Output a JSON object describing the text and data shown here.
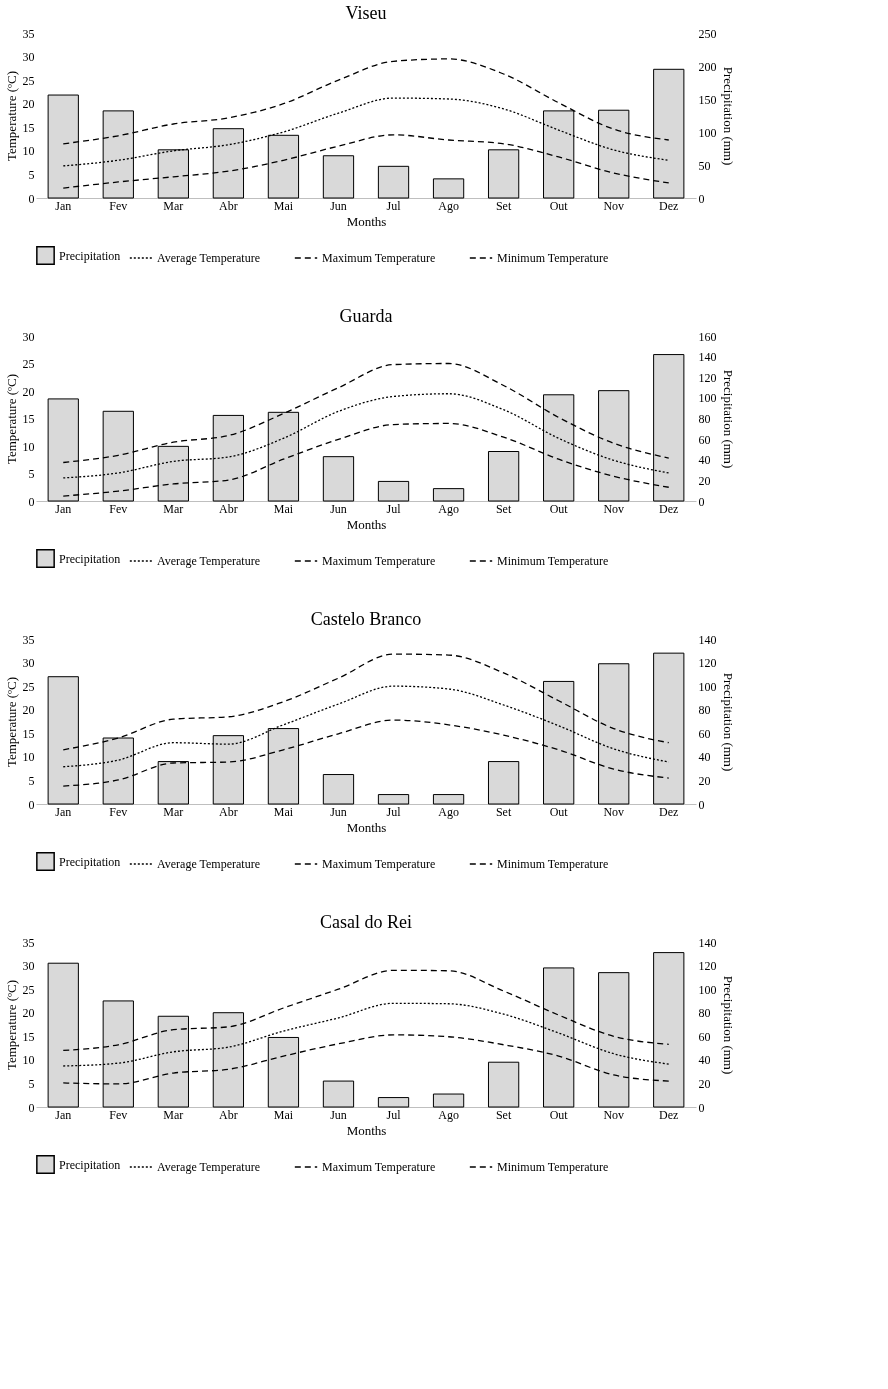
{
  "chart_data": [
    {
      "type": "bar",
      "title": "Viseu",
      "xlabel": "Months",
      "ylabel": "Temperature (ºC)",
      "y2label": "Precipitation (mm)",
      "categories": [
        "Jan",
        "Fev",
        "Mar",
        "Abr",
        "Mai",
        "Jun",
        "Jul",
        "Ago",
        "Set",
        "Out",
        "Nov",
        "Dez"
      ],
      "ylim": [
        0,
        35
      ],
      "yticks": [
        0,
        5,
        10,
        15,
        20,
        25,
        30,
        35
      ],
      "y2lim": [
        0,
        250
      ],
      "y2ticks": [
        0,
        50,
        100,
        150,
        200,
        250
      ],
      "legend": "bottom",
      "grid": false,
      "series": [
        {
          "name": "Precipitation",
          "axis": "y2",
          "color": "#d9d9d9",
          "values": [
            156,
            132,
            73,
            105,
            95,
            64,
            48,
            29,
            73,
            132,
            133,
            195
          ]
        },
        {
          "name": "Average Temperature",
          "type": "line",
          "color": "#000000",
          "line_style": "dotted",
          "values": [
            6.8,
            8,
            10,
            11.3,
            14,
            18,
            21.2,
            21,
            18.9,
            14.4,
            10.2,
            8
          ]
        },
        {
          "name": "Maximum Temperature",
          "type": "line",
          "color": "#000000",
          "line_style": "dashed",
          "values": [
            11.5,
            13.2,
            15.7,
            17,
            20,
            25,
            29,
            29.5,
            26.3,
            20.2,
            14.6,
            12.3
          ]
        },
        {
          "name": "Minimum Temperature",
          "type": "line",
          "color": "#000000",
          "line_style": "dashed",
          "values": [
            2.1,
            3.4,
            4.5,
            5.7,
            8,
            11,
            13.4,
            12.3,
            11.5,
            8.7,
            5.3,
            3.2
          ]
        }
      ]
    },
    {
      "type": "bar",
      "title": "Guarda",
      "xlabel": "Months",
      "ylabel": "Temperature (ºC)",
      "y2label": "Precipitation (mm)",
      "categories": [
        "Jan",
        "Fev",
        "Mar",
        "Abr",
        "Mai",
        "Jun",
        "Jul",
        "Ago",
        "Set",
        "Out",
        "Nov",
        "Dez"
      ],
      "ylim": [
        0,
        30
      ],
      "yticks": [
        0,
        5,
        10,
        15,
        20,
        25,
        30
      ],
      "y2lim": [
        0,
        160
      ],
      "y2ticks": [
        0,
        20,
        40,
        60,
        80,
        100,
        120,
        140,
        160
      ],
      "legend": "bottom",
      "grid": false,
      "series": [
        {
          "name": "Precipitation",
          "axis": "y2",
          "color": "#d9d9d9",
          "values": [
            99,
            87,
            53,
            83,
            86,
            43,
            19,
            12,
            48,
            103,
            107,
            142
          ]
        },
        {
          "name": "Average Temperature",
          "type": "line",
          "color": "#000000",
          "line_style": "dotted",
          "values": [
            4.2,
            5.1,
            7.2,
            8,
            11.4,
            16.3,
            19,
            19.5,
            16.6,
            11.4,
            7.4,
            5.1
          ]
        },
        {
          "name": "Maximum Temperature",
          "type": "line",
          "color": "#000000",
          "line_style": "dashed",
          "values": [
            7,
            8.3,
            10.7,
            11.9,
            15.9,
            20.6,
            24.8,
            25,
            21,
            15.2,
            10.5,
            7.8
          ]
        },
        {
          "name": "Minimum Temperature",
          "type": "line",
          "color": "#000000",
          "line_style": "dashed",
          "values": [
            0.9,
            1.8,
            3.1,
            3.8,
            7.6,
            11.2,
            13.9,
            14.1,
            11.6,
            7.6,
            4.5,
            2.5
          ]
        }
      ]
    },
    {
      "type": "bar",
      "title": "Castelo Branco",
      "xlabel": "Months",
      "ylabel": "Temperature (ºC)",
      "y2label": "Precipitation (mm)",
      "categories": [
        "Jan",
        "Fev",
        "Mar",
        "Abr",
        "Mai",
        "Jun",
        "Jul",
        "Ago",
        "Set",
        "Out",
        "Nov",
        "Dez"
      ],
      "ylim": [
        0,
        35
      ],
      "yticks": [
        0,
        5,
        10,
        15,
        20,
        25,
        30,
        35
      ],
      "y2lim": [
        0,
        140
      ],
      "y2ticks": [
        0,
        20,
        40,
        60,
        80,
        100,
        120,
        140
      ],
      "legend": "bottom",
      "grid": false,
      "series": [
        {
          "name": "Precipitation",
          "axis": "y2",
          "color": "#d9d9d9",
          "values": [
            108,
            56,
            36,
            58,
            64,
            25,
            8,
            8,
            36,
            104,
            119,
            128
          ]
        },
        {
          "name": "Average Temperature",
          "type": "line",
          "color": "#000000",
          "line_style": "dotted",
          "values": [
            7.9,
            9.3,
            13,
            12.7,
            16.8,
            21.2,
            25,
            24.4,
            21,
            16.6,
            11.7,
            8.9
          ]
        },
        {
          "name": "Maximum Temperature",
          "type": "line",
          "color": "#000000",
          "line_style": "dashed",
          "values": [
            11.5,
            14,
            18,
            18.5,
            21.7,
            26.7,
            31.8,
            31.6,
            27.8,
            21.9,
            16,
            13
          ]
        },
        {
          "name": "Minimum Temperature",
          "type": "line",
          "color": "#000000",
          "line_style": "dashed",
          "values": [
            3.8,
            5.1,
            8.7,
            8.9,
            11.5,
            14.9,
            17.8,
            16.8,
            14.6,
            11.5,
            7.4,
            5.5
          ]
        }
      ]
    },
    {
      "type": "bar",
      "title": "Casal do Rei",
      "xlabel": "Months",
      "ylabel": "Temperature (ºC)",
      "y2label": "Precipitation (mm)",
      "categories": [
        "Jan",
        "Fev",
        "Mar",
        "Abr",
        "Mai",
        "Jun",
        "Jul",
        "Ago",
        "Set",
        "Out",
        "Nov",
        "Dez"
      ],
      "ylim": [
        0,
        35
      ],
      "yticks": [
        0,
        5,
        10,
        15,
        20,
        25,
        30,
        35
      ],
      "y2lim": [
        0,
        140
      ],
      "y2ticks": [
        0,
        20,
        40,
        60,
        80,
        100,
        120,
        140
      ],
      "legend": "bottom",
      "grid": false,
      "series": [
        {
          "name": "Precipitation",
          "axis": "y2",
          "color": "#d9d9d9",
          "values": [
            122,
            90,
            77,
            80,
            59,
            22,
            8,
            11,
            38,
            118,
            114,
            131
          ]
        },
        {
          "name": "Average Temperature",
          "type": "line",
          "color": "#000000",
          "line_style": "dotted",
          "values": [
            8.7,
            9.3,
            11.7,
            12.7,
            16.1,
            18.9,
            22,
            21.9,
            19.7,
            15.7,
            11.3,
            9.1
          ]
        },
        {
          "name": "Maximum Temperature",
          "type": "line",
          "color": "#000000",
          "line_style": "dashed",
          "values": [
            12,
            13.2,
            16.4,
            17,
            21,
            25,
            29,
            28.9,
            24.6,
            19.5,
            15,
            13.3
          ]
        },
        {
          "name": "Minimum Temperature",
          "type": "line",
          "color": "#000000",
          "line_style": "dashed",
          "values": [
            5.1,
            4.9,
            7.2,
            8,
            10.8,
            13.4,
            15.3,
            14.9,
            13.2,
            10.8,
            6.8,
            5.5
          ]
        }
      ]
    }
  ]
}
